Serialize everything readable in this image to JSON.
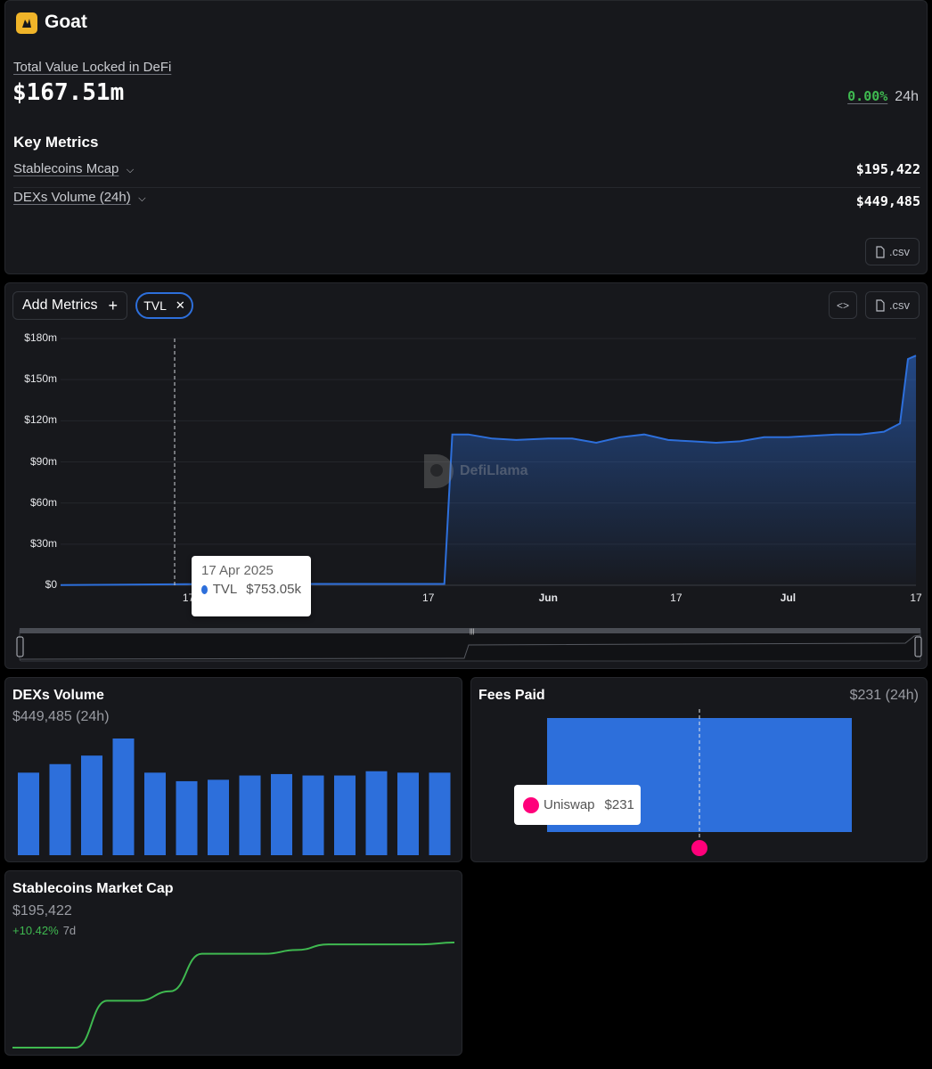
{
  "header": {
    "chain_name": "Goat",
    "tvl_label": "Total Value Locked in DeFi",
    "tvl_value": "$167.51m",
    "change_pct": "0.00%",
    "change_period": "24h"
  },
  "key_metrics": {
    "title": "Key Metrics",
    "rows": [
      {
        "label": "Stablecoins Mcap",
        "value": "$195,422"
      },
      {
        "label": "DEXs Volume (24h)",
        "value": "$449,485"
      }
    ],
    "csv_label": ".csv"
  },
  "tvl_chart": {
    "add_metrics_label": "Add Metrics",
    "add_icon": "plus-icon",
    "chip_label": "TVL",
    "embed_icon": "code-icon",
    "csv_label": ".csv",
    "watermark": "DefiLlama",
    "tooltip": {
      "date": "17 Apr 2025",
      "series": "TVL",
      "value": "$753.05k",
      "color": "#2d6fdb"
    }
  },
  "chart_data": [
    {
      "type": "area",
      "title": "",
      "series": [
        {
          "name": "TVL",
          "x": [
            "2025-04-01",
            "2025-04-17",
            "2025-05-01",
            "2025-05-17",
            "2025-05-19",
            "2025-05-20",
            "2025-05-22",
            "2025-05-25",
            "2025-05-28",
            "2025-06-01",
            "2025-06-04",
            "2025-06-07",
            "2025-06-10",
            "2025-06-13",
            "2025-06-16",
            "2025-06-19",
            "2025-06-22",
            "2025-06-25",
            "2025-06-28",
            "2025-07-01",
            "2025-07-04",
            "2025-07-07",
            "2025-07-10",
            "2025-07-13",
            "2025-07-15",
            "2025-07-16",
            "2025-07-17"
          ],
          "values": [
            0.2,
            0.75,
            1,
            1,
            1,
            110,
            110,
            107,
            106,
            107,
            107,
            104,
            108,
            110,
            106,
            105,
            104,
            105,
            108,
            108,
            109,
            110,
            110,
            112,
            118,
            165,
            167.51
          ]
        }
      ],
      "xticks": [
        "17",
        "17",
        "Jun",
        "17",
        "Jul",
        "17"
      ],
      "yticks": [
        "$0",
        "$30m",
        "$60m",
        "$90m",
        "$120m",
        "$150m",
        "$180m"
      ],
      "ylim": [
        0,
        180
      ],
      "color": "#2d6fdb"
    },
    {
      "type": "bar",
      "title": "DEXs Volume",
      "subtitle": "$449,485 (24h)",
      "values": [
        580,
        640,
        700,
        820,
        580,
        520,
        530,
        560,
        570,
        560,
        560,
        590,
        580,
        580
      ],
      "color": "#2d6fdb"
    },
    {
      "type": "bar",
      "title": "Fees Paid",
      "subtitle": "$231 (24h)",
      "categories": [
        "Uniswap"
      ],
      "values": [
        231
      ],
      "tooltip": {
        "protocol": "Uniswap",
        "value": "$231"
      },
      "color": "#2d6fdb"
    },
    {
      "type": "line",
      "title": "Stablecoins Market Cap",
      "subtitle": "$195,422",
      "change": "+10.42%",
      "change_period": "7d",
      "values": [
        110,
        110,
        110,
        135,
        135,
        140,
        160,
        160,
        160,
        162,
        165,
        165,
        165,
        165,
        166
      ],
      "color": "#3fb950"
    }
  ],
  "colors": {
    "accent": "#2d6fdb",
    "positive": "#3fb950",
    "background": "#000000",
    "card": "#17181c",
    "uniswap": "#ff007a"
  }
}
